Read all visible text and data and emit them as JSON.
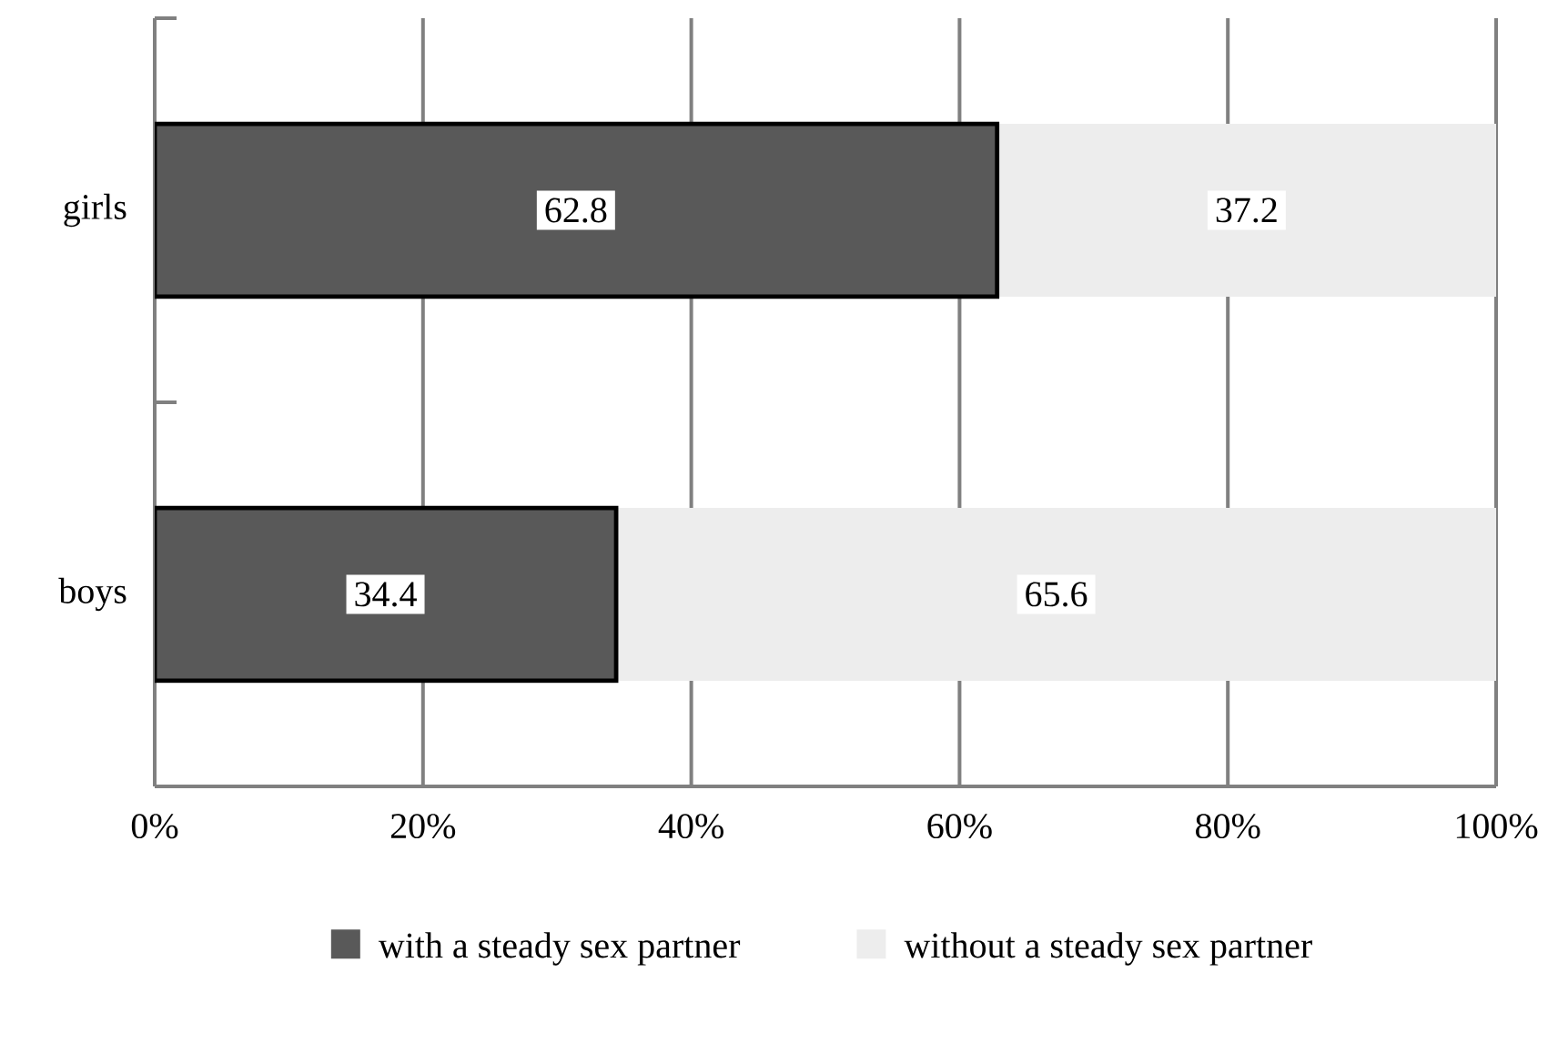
{
  "chart_data": {
    "type": "bar",
    "orientation": "horizontal",
    "stacked": true,
    "categories": [
      "girls",
      "boys"
    ],
    "series": [
      {
        "name": "with a steady sex partner",
        "color": "#595959",
        "values": [
          62.8,
          34.4
        ],
        "value_labels": [
          "62.8",
          "34.4"
        ]
      },
      {
        "name": "without a steady sex partner",
        "color": "#ededed",
        "values": [
          37.2,
          65.6
        ],
        "value_labels": [
          "37.2",
          "65.6"
        ]
      }
    ],
    "xlim": [
      0,
      100
    ],
    "xticks": [
      {
        "value": 0,
        "label": "0%"
      },
      {
        "value": 20,
        "label": "20%"
      },
      {
        "value": 40,
        "label": "40%"
      },
      {
        "value": 60,
        "label": "60%"
      },
      {
        "value": 80,
        "label": "80%"
      },
      {
        "value": 100,
        "label": "100%"
      }
    ],
    "grid": "x",
    "legend": "bottom"
  }
}
